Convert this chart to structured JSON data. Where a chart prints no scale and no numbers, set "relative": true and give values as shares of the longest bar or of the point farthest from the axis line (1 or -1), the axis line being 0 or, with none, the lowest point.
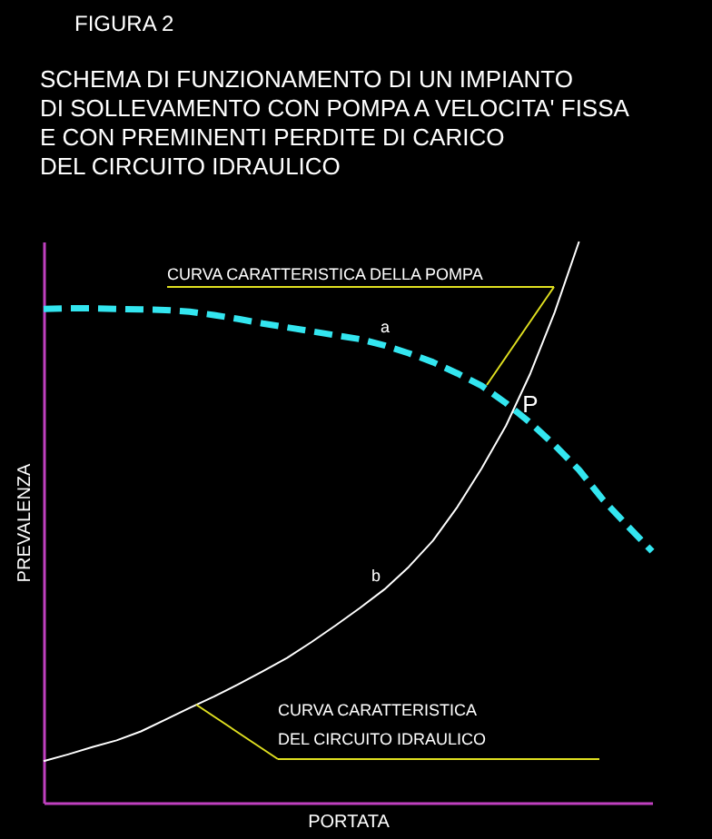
{
  "chart_data": {
    "type": "line",
    "relative": true,
    "title": "FIGURA  2",
    "subtitle": "SCHEMA DI FUNZIONAMENTO DI UN IMPIANTO\nDI SOLLEVAMENTO CON POMPA A VELOCITA' FISSA\nE CON PREMINENTI PERDITE DI CARICO\nDEL CIRCUITO IDRAULICO",
    "xlabel": "PORTATA",
    "ylabel": "PREVALENZA",
    "categories": [
      null,
      null,
      null,
      null,
      null,
      null,
      null,
      null,
      null,
      null,
      null,
      null,
      null,
      null,
      null,
      null,
      null,
      null,
      null,
      null,
      null,
      null,
      null,
      null,
      null,
      null
    ],
    "series": [
      {
        "color": "#33e6f0",
        "line_style": "dashed",
        "values": [
          0.88,
          0.881,
          0.881,
          0.88,
          0.879,
          0.878,
          0.875,
          0.869,
          0.862,
          0.854,
          0.847,
          0.84,
          0.833,
          0.826,
          0.815,
          0.801,
          0.785,
          0.765,
          0.743,
          0.712,
          0.677,
          0.637,
          0.593,
          0.539,
          0.493,
          0.448
        ]
      },
      {
        "color": "#ffffff",
        "line_style": "solid",
        "values": [
          0.074,
          0.086,
          0.099,
          0.111,
          0.127,
          0.148,
          0.169,
          0.189,
          0.211,
          0.234,
          0.258,
          0.286,
          0.316,
          0.347,
          0.38,
          0.42,
          0.467,
          0.527,
          0.596,
          0.672,
          0.765,
          0.874,
          1.0,
          null,
          null,
          null
        ]
      }
    ],
    "annotations": [
      "CURVA CARATTERISTICA DELLA POMPA",
      "CURVA CARATTERISTICA\nDEL CIRCUITO IDRAULICO",
      "a",
      "b",
      "P"
    ]
  }
}
